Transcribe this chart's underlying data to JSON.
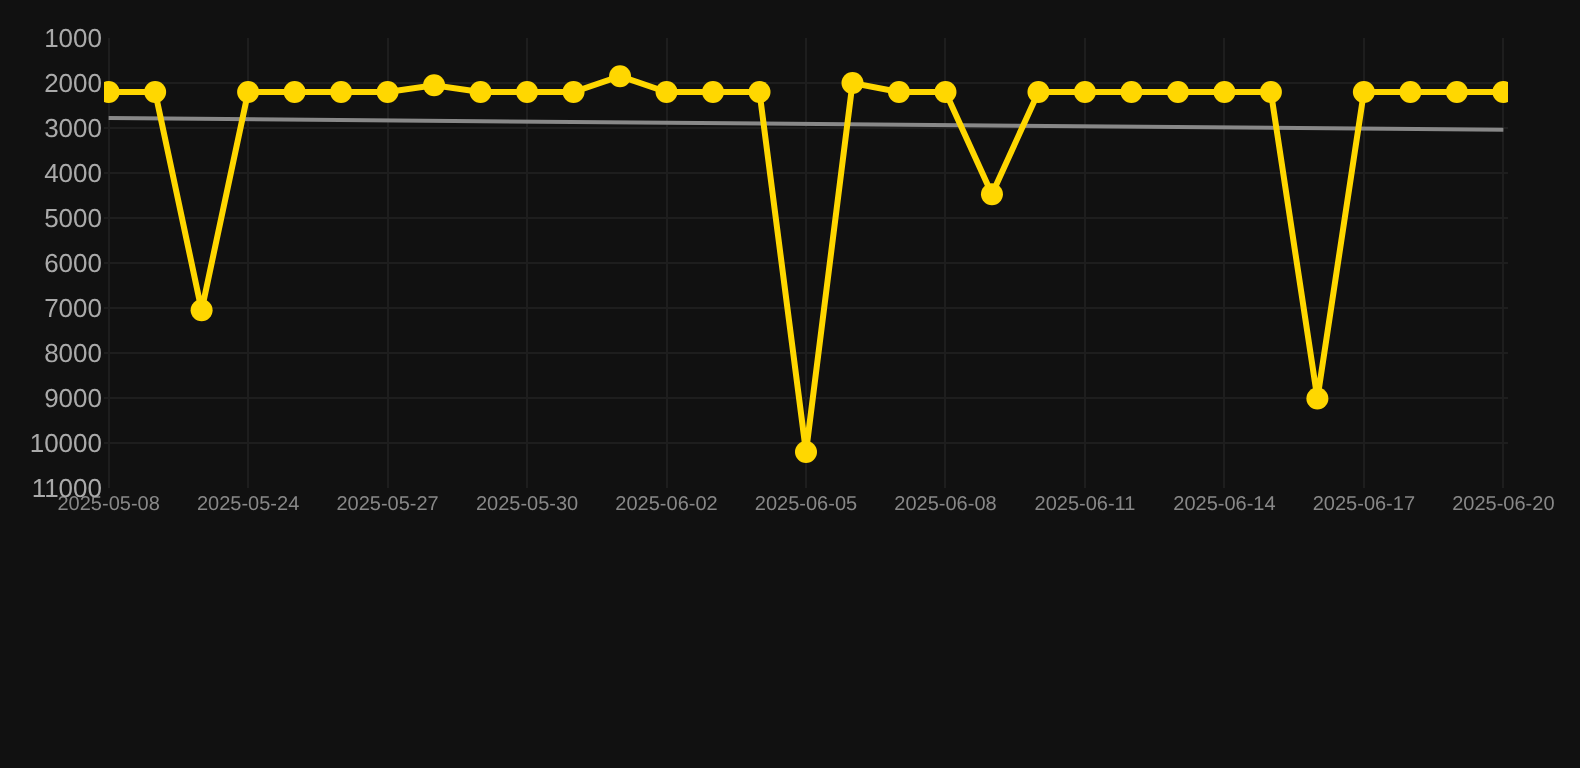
{
  "chart_data": {
    "type": "line",
    "categories": [
      "2025-05-08",
      null,
      null,
      "2025-05-24",
      null,
      null,
      "2025-05-27",
      null,
      null,
      "2025-05-30",
      null,
      null,
      "2025-06-02",
      null,
      null,
      "2025-06-05",
      null,
      null,
      "2025-06-08",
      null,
      null,
      "2025-06-11",
      null,
      null,
      "2025-06-14",
      null,
      null,
      "2025-06-17",
      null,
      null,
      "2025-06-20"
    ],
    "series": [
      {
        "color": "#888888",
        "marker": "none",
        "values": [
          2780,
          null,
          null,
          null,
          null,
          null,
          null,
          null,
          null,
          null,
          null,
          null,
          null,
          null,
          null,
          null,
          null,
          null,
          null,
          null,
          null,
          null,
          null,
          null,
          null,
          null,
          null,
          null,
          null,
          null,
          3040
        ]
      },
      {
        "color": "#ffd700",
        "marker": "circle",
        "values": [
          2200,
          2200,
          7050,
          2200,
          2200,
          2200,
          2200,
          2050,
          2200,
          2200,
          2200,
          1850,
          2200,
          2200,
          2200,
          10200,
          2000,
          2200,
          2200,
          4470,
          2200,
          2200,
          2200,
          2200,
          2200,
          2200,
          9010,
          2200,
          2200,
          2200,
          2200
        ]
      }
    ],
    "ylim": [
      11000,
      1000
    ],
    "yticks": [
      1000,
      2000,
      3000,
      4000,
      5000,
      6000,
      7000,
      8000,
      9000,
      10000,
      11000
    ],
    "grid": true
  }
}
